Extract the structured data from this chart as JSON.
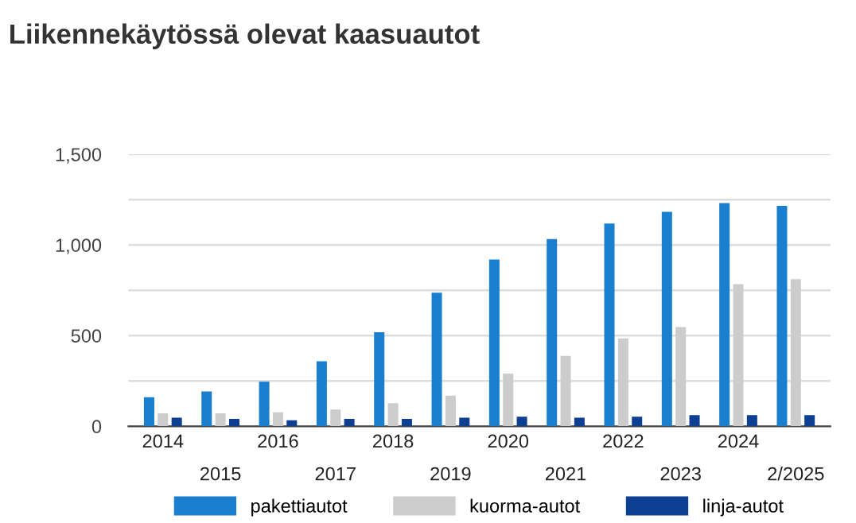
{
  "chart_data": {
    "type": "bar",
    "title": "Liikennekäytössä olevat kaasuautot",
    "categories": [
      "2014",
      "2015",
      "2016",
      "2017",
      "2018",
      "2019",
      "2020",
      "2021",
      "2022",
      "2023",
      "2024",
      "2/2025"
    ],
    "series": [
      {
        "name": "pakettiautot",
        "color": "#1a7fcf",
        "values": [
          160,
          192,
          246,
          358,
          518,
          737,
          920,
          1033,
          1118,
          1183,
          1231,
          1216
        ]
      },
      {
        "name": "kuorma-autot",
        "color": "#cccccc",
        "values": [
          71,
          71,
          77,
          92,
          127,
          169,
          290,
          388,
          485,
          547,
          784,
          811
        ]
      },
      {
        "name": "linja-autot",
        "color": "#0d3f92",
        "values": [
          47,
          41,
          33,
          41,
          41,
          47,
          53,
          47,
          53,
          62,
          62,
          62
        ]
      }
    ],
    "ylim": [
      0,
      1500
    ],
    "yticks": [
      {
        "value": 0,
        "label": "0"
      },
      {
        "value": 250,
        "label": null
      },
      {
        "value": 500,
        "label": "500"
      },
      {
        "value": 750,
        "label": null
      },
      {
        "value": 1000,
        "label": "1,000"
      },
      {
        "value": 1250,
        "label": null
      },
      {
        "value": 1500,
        "label": "1,500"
      }
    ],
    "grid": "y",
    "legend": "bottom"
  }
}
